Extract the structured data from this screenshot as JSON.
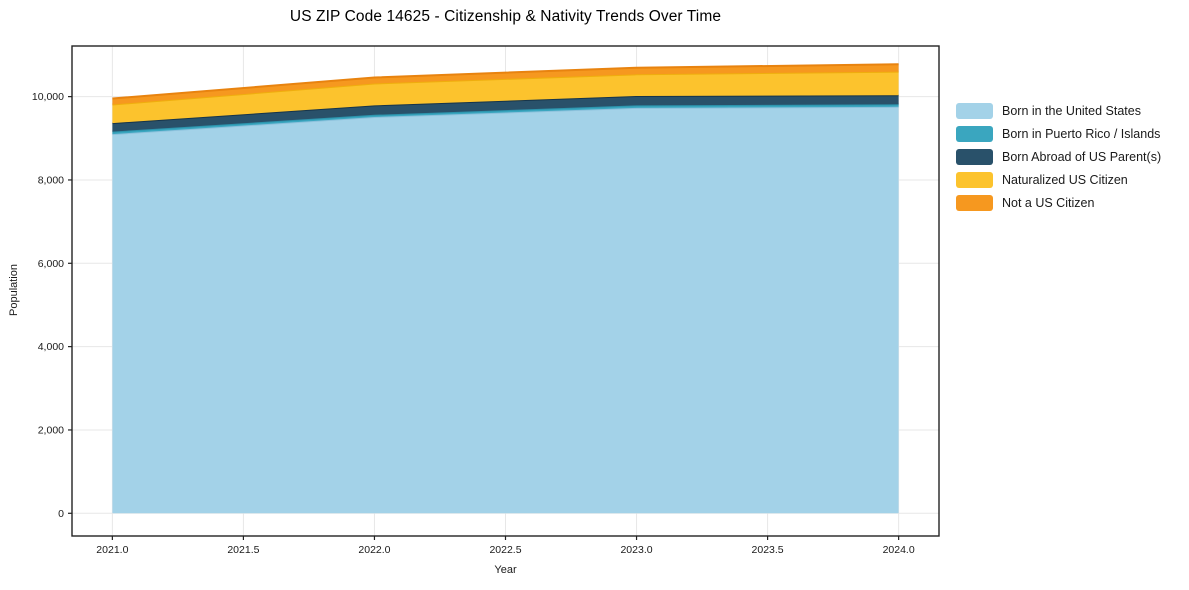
{
  "title": "US ZIP Code 14625 - Citizenship & Nativity Trends Over Time",
  "chart_data": {
    "type": "area",
    "stacked": true,
    "title": "US ZIP Code 14625 - Citizenship & Nativity Trends Over Time",
    "xlabel": "Year",
    "ylabel": "Population",
    "x": [
      2021,
      2022,
      2023,
      2024
    ],
    "series": [
      {
        "name": "Born in the United States",
        "color": "#a3d2e8",
        "edge_color": "#8cc1dc",
        "values": [
          9100,
          9510,
          9730,
          9755
        ]
      },
      {
        "name": "Born in Puerto Rico / Islands",
        "color": "#3aa6bf",
        "edge_color": "#2c93ac",
        "values": [
          60,
          55,
          60,
          60
        ]
      },
      {
        "name": "Born Abroad of US Parent(s)",
        "color": "#29516a",
        "edge_color": "#16344a",
        "values": [
          205,
          225,
          225,
          220
        ]
      },
      {
        "name": "Naturalized US Citizen",
        "color": "#fcc32d",
        "edge_color": "#efae0d",
        "values": [
          445,
          525,
          520,
          565
        ]
      },
      {
        "name": "Not a US Citizen",
        "color": "#f6981f",
        "edge_color": "#e8830f",
        "values": [
          145,
          145,
          160,
          175
        ]
      }
    ],
    "totals": [
      9955,
      10460,
      10695,
      10775
    ],
    "xlim": [
      2020.846,
      2024.154
    ],
    "ylim": [
      -545,
      11215
    ],
    "xticks": {
      "values": [
        2021.0,
        2021.5,
        2022.0,
        2022.5,
        2023.0,
        2023.5,
        2024.0
      ],
      "labels": [
        "2021.0",
        "2021.5",
        "2022.0",
        "2022.5",
        "2023.0",
        "2023.5",
        "2024.0"
      ]
    },
    "yticks": {
      "values": [
        0,
        2000,
        4000,
        6000,
        8000,
        10000
      ],
      "labels": [
        "0",
        "2,000",
        "4,000",
        "6,000",
        "8,000",
        "10,000"
      ]
    },
    "grid": true,
    "grid_color": "#e7e7e7",
    "spine_color": "#222222",
    "tick_text_color": "#1a1a1a",
    "legend_position": "right-outside"
  }
}
